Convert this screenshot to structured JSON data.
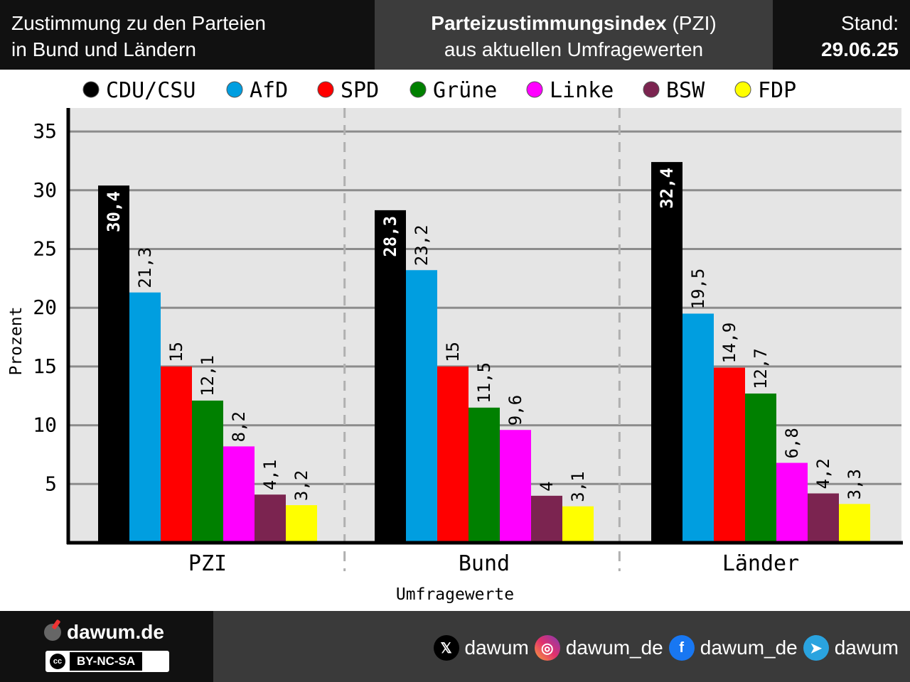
{
  "header": {
    "left_line1": "Zustimmung zu den Parteien",
    "left_line2": "in Bund und Ländern",
    "center_title_bold": "Parteizustimmungsindex",
    "center_title_rest": " (PZI)",
    "center_subtitle": "aus aktuellen Umfragewerten",
    "stand_label": "Stand:",
    "stand_date": "29.06.25"
  },
  "chart_data": {
    "type": "bar",
    "xlabel": "Umfragewerte",
    "ylabel": "Prozent",
    "ylim": [
      0,
      37
    ],
    "yticks": [
      5,
      10,
      15,
      20,
      25,
      30,
      35
    ],
    "grid": true,
    "legend_position": "top",
    "categories": [
      "PZI",
      "Bund",
      "Länder"
    ],
    "series": [
      {
        "name": "CDU/CSU",
        "color": "#000000",
        "values": [
          30.4,
          28.3,
          32.4
        ],
        "labels": [
          "30,4",
          "28,3",
          "32,4"
        ]
      },
      {
        "name": "AfD",
        "color": "#009ee0",
        "values": [
          21.3,
          23.2,
          19.5
        ],
        "labels": [
          "21,3",
          "23,2",
          "19,5"
        ]
      },
      {
        "name": "SPD",
        "color": "#ff0000",
        "values": [
          15,
          15,
          14.9
        ],
        "labels": [
          "15",
          "15",
          "14,9"
        ]
      },
      {
        "name": "Grüne",
        "color": "#008000",
        "values": [
          12.1,
          11.5,
          12.7
        ],
        "labels": [
          "12,1",
          "11,5",
          "12,7"
        ]
      },
      {
        "name": "Linke",
        "color": "#ff00ff",
        "values": [
          8.2,
          9.6,
          6.8
        ],
        "labels": [
          "8,2",
          "9,6",
          "6,8"
        ]
      },
      {
        "name": "BSW",
        "color": "#7b2450",
        "values": [
          4.1,
          4,
          4.2
        ],
        "labels": [
          "4,1",
          "4",
          "4,2"
        ]
      },
      {
        "name": "FDP",
        "color": "#ffff00",
        "values": [
          3.2,
          3.1,
          3.3
        ],
        "labels": [
          "3,2",
          "3,1",
          "3,3"
        ]
      }
    ]
  },
  "footer": {
    "brand": "dawum.de",
    "license": "BY-NC-SA",
    "license_icon": "cc",
    "socials": [
      {
        "icon": "x-icon",
        "glyph": "𝕏",
        "label": "dawum"
      },
      {
        "icon": "instagram-icon",
        "glyph": "◎",
        "label": "dawum_de"
      },
      {
        "icon": "facebook-icon",
        "glyph": "f",
        "label": "dawum_de"
      },
      {
        "icon": "telegram-icon",
        "glyph": "➤",
        "label": "dawum"
      }
    ]
  }
}
